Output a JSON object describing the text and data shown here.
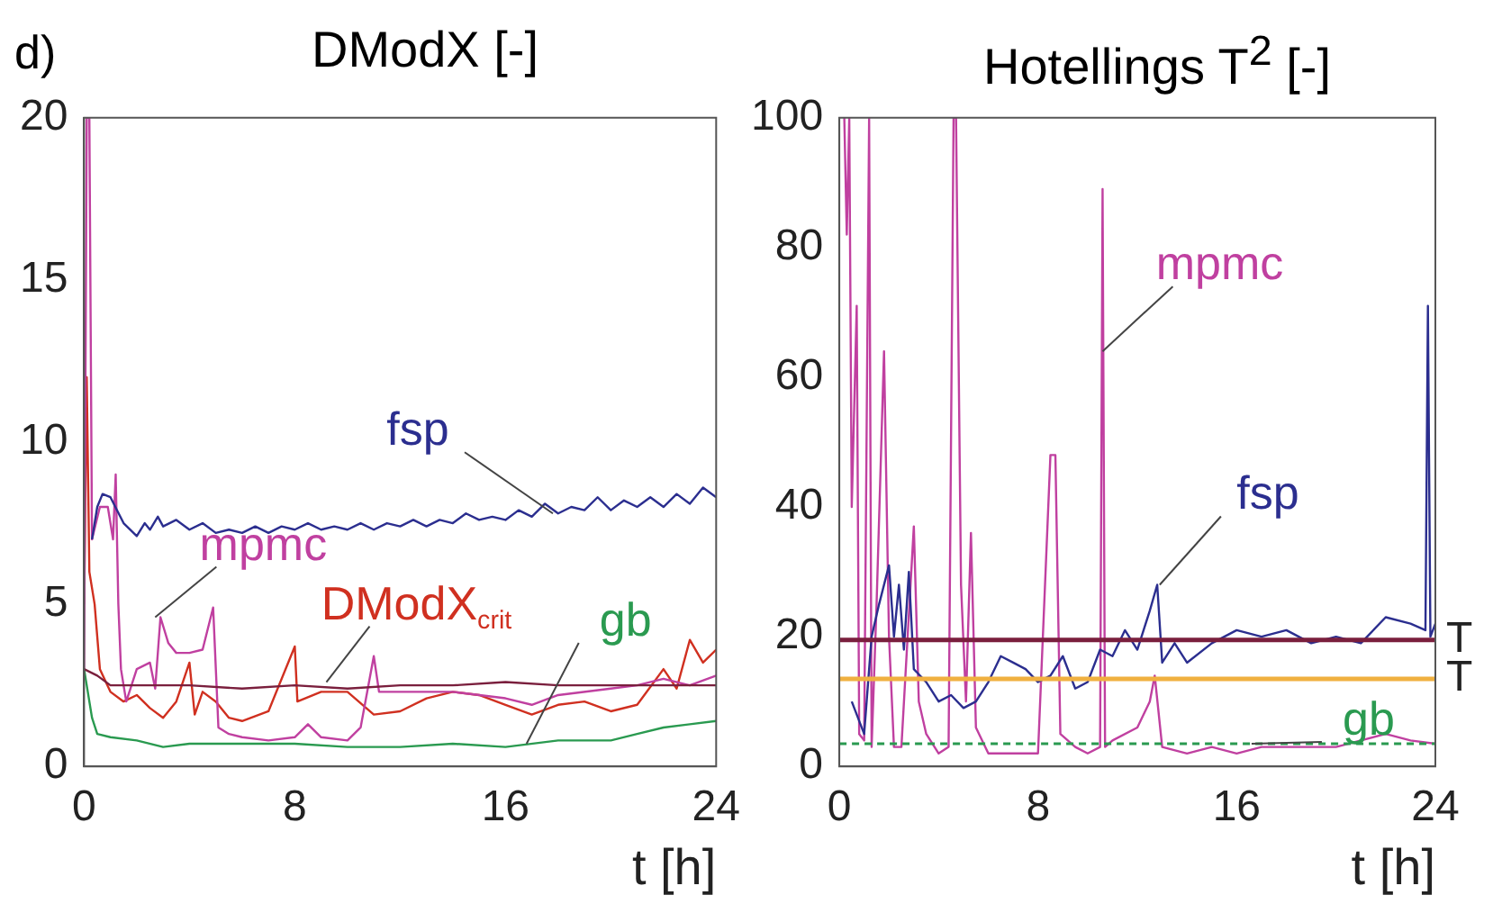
{
  "chart_data": [
    {
      "type": "line",
      "title": "DModX [-]",
      "xlabel": "t [h]",
      "xlim": [
        0,
        24
      ],
      "xticks": [
        0,
        8,
        16,
        24
      ],
      "ylim": [
        0,
        20
      ],
      "yticks": [
        0,
        5,
        10,
        15,
        20
      ],
      "grid": false,
      "marker": "none",
      "annotations": [
        "d)",
        {
          "text": "fsp",
          "x": 17.8,
          "y": 7.8
        },
        {
          "text": "mpmc",
          "x": 2.7,
          "y": 4.6
        },
        {
          "text": "DModX$_{crit}$",
          "x": 9.2,
          "y": 2.6
        },
        {
          "text": "gb",
          "x": 16.8,
          "y": 0.7
        }
      ],
      "series": [
        {
          "color": "#2b2e8f",
          "x": [
            0.3,
            0.5,
            0.7,
            1,
            1.5,
            2,
            2.3,
            2.5,
            2.8,
            3,
            3.5,
            4,
            4.5,
            5,
            5.5,
            6,
            6.5,
            7,
            7.5,
            8,
            8.5,
            9,
            9.5,
            10,
            10.5,
            11,
            11.5,
            12,
            12.5,
            13,
            13.5,
            14,
            14.5,
            15,
            15.5,
            16,
            16.5,
            17,
            17.5,
            18,
            18.5,
            19,
            19.5,
            20,
            20.5,
            21,
            21.5,
            22,
            22.5,
            23,
            23.5,
            24
          ],
          "values": [
            7.0,
            8.0,
            8.4,
            8.3,
            7.5,
            7.1,
            7.5,
            7.3,
            7.7,
            7.4,
            7.6,
            7.3,
            7.5,
            7.2,
            7.3,
            7.2,
            7.4,
            7.2,
            7.4,
            7.3,
            7.5,
            7.3,
            7.4,
            7.3,
            7.5,
            7.3,
            7.5,
            7.4,
            7.6,
            7.4,
            7.6,
            7.5,
            7.8,
            7.6,
            7.7,
            7.6,
            7.9,
            7.7,
            8.1,
            7.8,
            8.0,
            7.9,
            8.3,
            7.9,
            8.2,
            8.0,
            8.3,
            8.0,
            8.4,
            8.1,
            8.6,
            8.3
          ]
        },
        {
          "color": "#7a1f3d",
          "x": [
            0,
            0.5,
            1,
            2,
            4,
            6,
            8,
            10,
            12,
            14,
            16,
            18,
            20,
            22,
            24
          ],
          "values": [
            3.0,
            2.8,
            2.5,
            2.5,
            2.5,
            2.4,
            2.5,
            2.4,
            2.5,
            2.5,
            2.6,
            2.5,
            2.5,
            2.5,
            2.5
          ]
        },
        {
          "color": "#c040a0",
          "x": [
            0,
            0.1,
            0.2,
            0.3,
            0.6,
            0.9,
            1.1,
            1.2,
            1.3,
            1.4,
            1.6,
            2,
            2.5,
            2.7,
            2.9,
            3.2,
            3.5,
            4,
            4.5,
            4.9,
            5.1,
            5.5,
            6,
            7,
            8,
            8.5,
            9,
            10,
            10.5,
            11,
            11.2,
            12,
            14,
            16,
            17,
            18,
            20,
            21,
            22,
            23,
            24
          ],
          "values": [
            3.0,
            20,
            20,
            7.0,
            8.0,
            8.0,
            7.0,
            9.0,
            5.0,
            3.0,
            2.0,
            3.0,
            3.2,
            2.4,
            4.6,
            3.8,
            3.5,
            3.5,
            3.6,
            4.9,
            1.2,
            1.0,
            0.9,
            0.8,
            0.9,
            1.3,
            0.9,
            0.8,
            1.2,
            3.4,
            2.3,
            2.3,
            2.3,
            2.1,
            1.9,
            2.2,
            2.4,
            2.5,
            2.7,
            2.5,
            2.8
          ]
        },
        {
          "color": "#d03020",
          "x": [
            0,
            0.1,
            0.2,
            0.4,
            0.6,
            1,
            1.5,
            2,
            2.5,
            3,
            3.5,
            4,
            4.2,
            4.5,
            5,
            5.5,
            6,
            7,
            8,
            8.1,
            9,
            10,
            11,
            12,
            13,
            14,
            15,
            16,
            17,
            18,
            19,
            20,
            21,
            22,
            22.5,
            23,
            23.5,
            24
          ],
          "values": [
            5.0,
            12,
            6.0,
            5.0,
            3.0,
            2.3,
            2.0,
            2.2,
            1.8,
            1.5,
            2.0,
            3.2,
            1.6,
            2.3,
            2.0,
            1.5,
            1.4,
            1.7,
            3.7,
            2.0,
            2.3,
            2.3,
            1.6,
            1.7,
            2.1,
            2.3,
            2.2,
            1.9,
            1.6,
            1.9,
            2.0,
            1.7,
            1.9,
            3.0,
            2.4,
            3.9,
            3.2,
            3.6
          ]
        },
        {
          "color": "#2a9a50",
          "x": [
            0,
            0.3,
            0.5,
            1,
            2,
            3,
            4,
            6,
            8,
            10,
            12,
            14,
            16,
            18,
            20,
            21,
            22,
            23,
            24
          ],
          "values": [
            3.0,
            1.5,
            1.0,
            0.9,
            0.8,
            0.6,
            0.7,
            0.7,
            0.7,
            0.6,
            0.6,
            0.7,
            0.6,
            0.8,
            0.8,
            1.0,
            1.2,
            1.3,
            1.4
          ]
        }
      ]
    },
    {
      "type": "line",
      "title": "Hotellings T$^{2}$ [-]",
      "xlabel": "t [h]",
      "xlim": [
        0,
        24
      ],
      "xticks": [
        0,
        8,
        16,
        24
      ],
      "ylim": [
        0,
        100
      ],
      "yticks": [
        0,
        20,
        40,
        60,
        80,
        100
      ],
      "grid": false,
      "marker": "none",
      "annotations": [
        {
          "text": "mpmc",
          "x": 10.6,
          "y": 64
        },
        {
          "text": "fsp",
          "x": 12.9,
          "y": 28
        },
        {
          "text": "gb",
          "x": 16.6,
          "y": 3.5
        }
      ],
      "ref_lines": [
        {
          "axis": "y",
          "value": 19.5,
          "label": "T",
          "color": "#7a1f3d"
        },
        {
          "axis": "y",
          "value": 13.5,
          "label": "T",
          "color": "#f0b040"
        },
        {
          "axis": "y",
          "value": 3.5,
          "color": "#2a9a50",
          "line_style": "dashed"
        }
      ],
      "series": [
        {
          "color": "#2b2e8f",
          "x": [
            0.5,
            1,
            1.3,
            1.6,
            2,
            2.2,
            2.4,
            2.6,
            2.8,
            3,
            3.5,
            4,
            4.5,
            5,
            5.5,
            6,
            6.5,
            7,
            7.5,
            8,
            8.5,
            9,
            9.5,
            10,
            10.5,
            11,
            11.5,
            12,
            12.5,
            12.8,
            13,
            13.5,
            14,
            15,
            16,
            17,
            18,
            19,
            20,
            21,
            22,
            23,
            23.6,
            23.7,
            23.8,
            24
          ],
          "values": [
            10,
            5,
            20,
            25,
            31,
            20,
            28,
            18,
            30,
            15,
            13,
            10,
            11,
            9,
            10,
            13,
            17,
            16,
            15,
            13,
            14,
            17,
            12,
            13,
            18,
            17,
            21,
            18,
            24,
            28,
            16,
            19,
            16,
            19,
            21,
            20,
            21,
            19,
            20,
            19,
            23,
            22,
            21,
            71,
            20,
            22
          ]
        },
        {
          "color": "#c040a0",
          "x": [
            0.2,
            0.3,
            0.4,
            0.5,
            0.7,
            0.8,
            1,
            1.2,
            1.3,
            1.5,
            1.8,
            2,
            2.2,
            2.5,
            3,
            3.2,
            3.5,
            4,
            4.4,
            4.6,
            4.7,
            4.9,
            5.1,
            5.3,
            5.5,
            6,
            7,
            8,
            8.5,
            8.7,
            8.9,
            9.5,
            10,
            10.5,
            10.6,
            10.7,
            11,
            12,
            12.5,
            12.7,
            13,
            14,
            15,
            16,
            17,
            18,
            19,
            20,
            21,
            22,
            23,
            24
          ],
          "values": [
            100,
            82,
            100,
            40,
            71,
            5,
            4,
            100,
            3,
            25,
            64,
            20,
            3,
            3,
            37,
            10,
            5,
            2,
            3,
            100,
            100,
            28,
            10,
            36,
            6,
            2,
            2,
            2,
            48,
            48,
            5,
            3,
            2,
            3,
            89,
            3,
            4,
            6,
            10,
            14,
            3,
            2,
            3,
            2,
            3,
            3,
            3,
            3,
            4,
            5,
            4,
            3.5
          ]
        }
      ]
    }
  ]
}
